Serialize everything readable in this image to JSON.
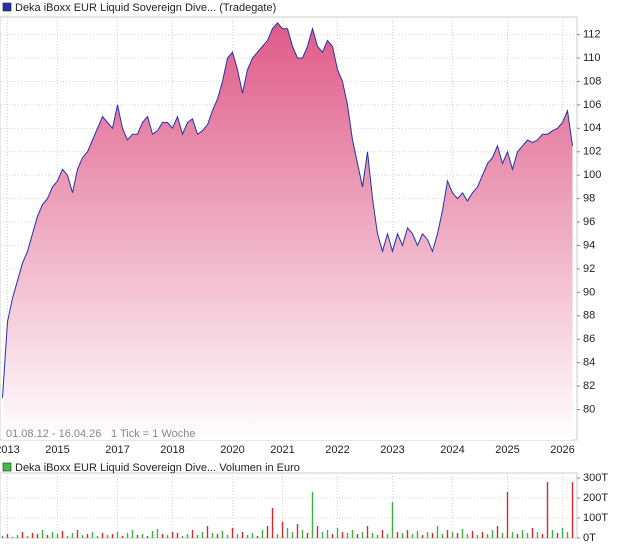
{
  "chart_data": [
    {
      "type": "area",
      "legend": "Deka iBoxx EUR Liquid Sovereign Dive... (Tradegate)",
      "range_note": "01.08.12 - 16.04.26",
      "tick_note": "1 Tick = 1 Woche",
      "color": "#2233aa",
      "fill_top": "#df5a88",
      "fill_bottom": "#ffffff",
      "ylim": [
        77.4,
        113.5
      ],
      "yticks": [
        80,
        82,
        84,
        86,
        88,
        90,
        92,
        94,
        96,
        98,
        100,
        102,
        104,
        106,
        108,
        110,
        112
      ],
      "grid": true,
      "categories": [
        null,
        "2013",
        null,
        null,
        null,
        null,
        null,
        null,
        null,
        null,
        null,
        "2015",
        null,
        null,
        null,
        null,
        null,
        null,
        null,
        null,
        null,
        null,
        null,
        "2017",
        null,
        null,
        null,
        null,
        null,
        null,
        null,
        null,
        null,
        null,
        "2018",
        null,
        null,
        null,
        null,
        null,
        null,
        null,
        null,
        null,
        null,
        null,
        "2020",
        null,
        null,
        null,
        null,
        null,
        null,
        null,
        null,
        null,
        "2021",
        null,
        null,
        null,
        null,
        null,
        null,
        null,
        null,
        null,
        null,
        "2022",
        null,
        null,
        null,
        null,
        null,
        null,
        null,
        null,
        null,
        null,
        "2023",
        null,
        null,
        null,
        null,
        null,
        null,
        null,
        null,
        null,
        null,
        null,
        "2024",
        null,
        null,
        null,
        null,
        null,
        null,
        null,
        null,
        null,
        null,
        "2025",
        null,
        null,
        null,
        null,
        null,
        null,
        null,
        null,
        null,
        null,
        "2026",
        null,
        null
      ],
      "values": [
        81,
        87.5,
        89.5,
        91,
        92.5,
        93.5,
        95,
        96.5,
        97.5,
        98,
        99,
        99.5,
        100.5,
        100,
        98.5,
        100.5,
        101.5,
        102,
        103,
        104,
        105,
        104.5,
        104,
        106,
        104,
        103,
        103.5,
        103.5,
        104.5,
        105,
        103.5,
        103.8,
        104.5,
        104.5,
        104,
        105,
        103.5,
        104.5,
        104.8,
        103.5,
        103.8,
        104.3,
        105.5,
        106.5,
        108,
        110,
        110.5,
        109,
        107,
        109,
        110,
        110.5,
        111,
        111.5,
        112.5,
        113,
        112.5,
        112.5,
        111,
        110,
        110,
        111,
        112.5,
        111,
        110.5,
        111.5,
        111,
        109,
        108,
        106,
        103,
        101,
        99,
        102,
        98,
        95,
        93.5,
        95,
        93.5,
        95,
        94,
        95.5,
        95,
        94,
        95,
        94.5,
        93.5,
        95,
        97,
        99.5,
        98.5,
        98,
        98.5,
        97.8,
        98.5,
        99,
        100,
        101,
        101.5,
        102.5,
        101,
        102,
        100.5,
        102,
        102.5,
        103,
        102.8,
        103,
        103.5,
        103.5,
        103.8,
        104,
        104.5,
        105.5,
        102.5
      ]
    },
    {
      "type": "bar",
      "legend": "Deka iBoxx EUR Liquid Sovereign Dive... Volumen in Euro",
      "legend_color": "#44bb44",
      "ylim": [
        0,
        325
      ],
      "yticks": [
        {
          "value": 0,
          "label": "0T"
        },
        {
          "value": 100,
          "label": "100T"
        },
        {
          "value": 200,
          "label": "200T"
        },
        {
          "value": 300,
          "label": "300T"
        }
      ],
      "grid": true,
      "values": [
        10,
        20,
        5,
        15,
        30,
        10,
        25,
        20,
        40,
        15,
        30,
        20,
        35,
        10,
        25,
        40,
        15,
        20,
        30,
        10,
        25,
        15,
        20,
        30,
        10,
        25,
        40,
        15,
        20,
        10,
        35,
        45,
        20,
        15,
        30,
        25,
        10,
        20,
        40,
        15,
        30,
        60,
        25,
        20,
        35,
        15,
        50,
        20,
        30,
        15,
        25,
        10,
        40,
        60,
        150,
        20,
        80,
        50,
        30,
        70,
        40,
        25,
        230,
        60,
        30,
        40,
        20,
        50,
        30,
        25,
        40,
        20,
        30,
        60,
        25,
        15,
        40,
        20,
        180,
        30,
        25,
        40,
        20,
        35,
        15,
        30,
        25,
        60,
        20,
        40,
        30,
        25,
        45,
        20,
        35,
        15,
        30,
        20,
        40,
        60,
        25,
        230,
        30,
        20,
        40,
        25,
        50,
        30,
        20,
        280,
        40,
        25,
        50,
        30,
        280
      ],
      "colors": [
        "#3cb043",
        "#d9262b",
        "#3cb043",
        "#3cb043",
        "#d9262b",
        "#3cb043",
        "#d9262b",
        "#d9262b",
        "#3cb043",
        "#d9262b",
        "#3cb043",
        "#3cb043",
        "#d9262b",
        "#3cb043",
        "#3cb043",
        "#d9262b",
        "#3cb043",
        "#d9262b",
        "#3cb043",
        "#3cb043",
        "#d9262b",
        "#3cb043",
        "#d9262b",
        "#3cb043",
        "#d9262b",
        "#3cb043",
        "#3cb043",
        "#d9262b",
        "#3cb043",
        "#d9262b",
        "#3cb043",
        "#3cb043",
        "#d9262b",
        "#3cb043",
        "#d9262b",
        "#d9262b",
        "#3cb043",
        "#3cb043",
        "#d9262b",
        "#3cb043",
        "#3cb043",
        "#d9262b",
        "#3cb043",
        "#d9262b",
        "#3cb043",
        "#3cb043",
        "#d9262b",
        "#3cb043",
        "#d9262b",
        "#3cb043",
        "#3cb043",
        "#d9262b",
        "#3cb043",
        "#d9262b",
        "#d9262b",
        "#3cb043",
        "#d9262b",
        "#3cb043",
        "#3cb043",
        "#d9262b",
        "#3cb043",
        "#d9262b",
        "#3cb043",
        "#d9262b",
        "#3cb043",
        "#3cb043",
        "#d9262b",
        "#3cb043",
        "#d9262b",
        "#3cb043",
        "#3cb043",
        "#d9262b",
        "#3cb043",
        "#d9262b",
        "#3cb043",
        "#3cb043",
        "#d9262b",
        "#3cb043",
        "#3cb043",
        "#d9262b",
        "#3cb043",
        "#d9262b",
        "#3cb043",
        "#3cb043",
        "#d9262b",
        "#3cb043",
        "#d9262b",
        "#3cb043",
        "#3cb043",
        "#d9262b",
        "#3cb043",
        "#d9262b",
        "#3cb043",
        "#3cb043",
        "#d9262b",
        "#3cb043",
        "#d9262b",
        "#3cb043",
        "#3cb043",
        "#d9262b",
        "#3cb043",
        "#d9262b",
        "#3cb043",
        "#d9262b",
        "#3cb043",
        "#3cb043",
        "#d9262b",
        "#3cb043",
        "#d9262b",
        "#d9262b",
        "#3cb043",
        "#d9262b",
        "#3cb043",
        "#3cb043",
        "#d9262b"
      ]
    }
  ]
}
